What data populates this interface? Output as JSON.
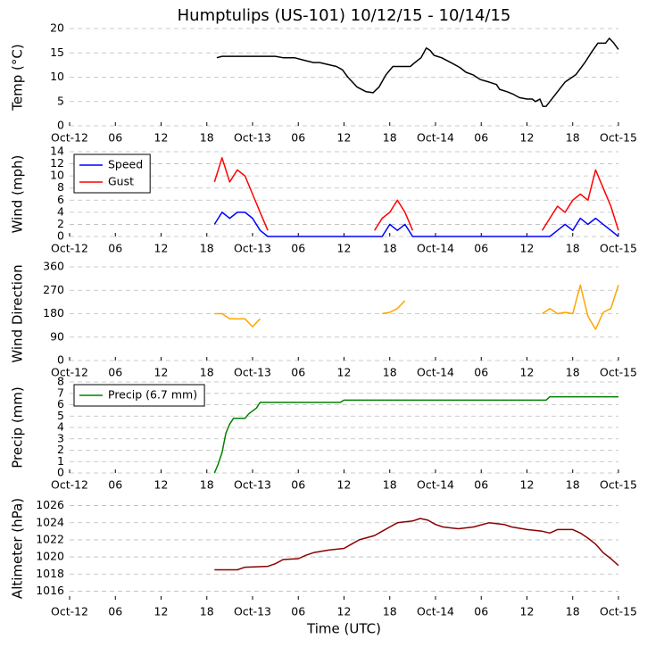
{
  "chart_data": [
    {
      "type": "line",
      "title": "Humptulips (US-101) 10/12/15 - 10/14/15",
      "ylabel": "Temp (°C)",
      "x": [
        19.3,
        20,
        22,
        24,
        26,
        27,
        28,
        29.5,
        30.7,
        32,
        32.8,
        35,
        35.8,
        36.5,
        37.7,
        38.9,
        39.8,
        40.6,
        41.5,
        42.4,
        44.7,
        45.3,
        46.1,
        46.8,
        47.3,
        47.8,
        48.8,
        50,
        51.2,
        52,
        52.9,
        53.9,
        55,
        56,
        56.4,
        57.4,
        58.2,
        59,
        60,
        60.7,
        61.1,
        61.7,
        62.1,
        62.5,
        63.5,
        65,
        66.4,
        67.6,
        68.4,
        69.3,
        70.3,
        70.8,
        71.4,
        72
      ],
      "series": [
        {
          "color": "#000000",
          "values": [
            14,
            14.3,
            14.3,
            14.3,
            14.3,
            14.3,
            14,
            14,
            13.5,
            13,
            13,
            12.2,
            11.5,
            10,
            8,
            7,
            6.8,
            8,
            10.5,
            12.2,
            12.2,
            13,
            14,
            16,
            15.5,
            14.5,
            14,
            13,
            12,
            11,
            10.5,
            9.5,
            9,
            8.5,
            7.5,
            7,
            6.5,
            5.8,
            5.5,
            5.5,
            5,
            5.5,
            4,
            4,
            6,
            9,
            10.5,
            13,
            15,
            17,
            17,
            18,
            17,
            15.7
          ]
        }
      ],
      "ylim": [
        0,
        20
      ],
      "yticks": [
        0,
        5,
        10,
        15,
        20
      ],
      "xlim": [
        0,
        72
      ],
      "xticks": [
        {
          "value": 0,
          "label": "Oct-12"
        },
        {
          "value": 6,
          "label": "06"
        },
        12,
        18,
        {
          "value": 24,
          "label": "Oct-13"
        },
        {
          "value": 30,
          "label": "06"
        },
        {
          "value": 36,
          "label": "12"
        },
        {
          "value": 42,
          "label": "18"
        },
        {
          "value": 48,
          "label": "Oct-14"
        },
        {
          "value": 54,
          "label": "06"
        },
        {
          "value": 60,
          "label": "12"
        },
        {
          "value": 66,
          "label": "18"
        },
        {
          "value": 72,
          "label": "Oct-15"
        }
      ],
      "grid": true
    },
    {
      "type": "line",
      "ylabel": "Wind (mph)",
      "x": [
        19,
        20,
        21,
        22,
        23,
        24,
        25,
        26,
        27,
        28,
        29,
        30,
        31,
        32,
        33,
        34,
        35,
        36,
        37,
        38,
        39,
        40,
        41,
        42,
        43,
        44,
        45,
        46,
        47,
        48,
        49,
        50,
        51,
        52,
        53,
        54,
        55,
        56,
        57,
        58,
        59,
        60,
        61,
        62,
        63,
        64,
        65,
        66,
        67,
        68,
        69,
        70,
        71,
        72
      ],
      "series": [
        {
          "name": "Speed",
          "color": "#0000ff",
          "values": [
            2,
            4,
            3,
            4,
            4,
            3,
            1,
            0,
            0,
            0,
            0,
            0,
            0,
            0,
            0,
            0,
            0,
            0,
            0,
            0,
            0,
            0,
            0,
            2,
            1,
            2,
            0,
            0,
            0,
            0,
            0,
            0,
            0,
            0,
            0,
            0,
            0,
            0,
            0,
            0,
            0,
            0,
            0,
            0,
            0,
            1,
            2,
            1,
            3,
            2,
            3,
            2,
            1,
            0
          ]
        },
        {
          "name": "Gust",
          "color": "#ff0000",
          "values": [
            9,
            13,
            9,
            11,
            10,
            7,
            4,
            1,
            null,
            null,
            null,
            null,
            null,
            null,
            null,
            null,
            null,
            null,
            null,
            null,
            null,
            1,
            3,
            4,
            6,
            4,
            1,
            null,
            null,
            null,
            null,
            null,
            null,
            null,
            null,
            null,
            null,
            null,
            null,
            null,
            null,
            null,
            null,
            1,
            3,
            5,
            4,
            6,
            7,
            6,
            11,
            8,
            5,
            1
          ]
        }
      ],
      "legend": "upper left",
      "ylim": [
        0,
        14
      ],
      "yticks": [
        0,
        2,
        4,
        6,
        8,
        10,
        12,
        14
      ],
      "xlim": [
        0,
        72
      ],
      "xticks": [
        {
          "value": 0,
          "label": "Oct-12"
        },
        {
          "value": 6,
          "label": "06"
        },
        12,
        18,
        {
          "value": 24,
          "label": "Oct-13"
        },
        {
          "value": 30,
          "label": "06"
        },
        {
          "value": 36,
          "label": "12"
        },
        {
          "value": 42,
          "label": "18"
        },
        {
          "value": 48,
          "label": "Oct-14"
        },
        {
          "value": 54,
          "label": "06"
        },
        {
          "value": 60,
          "label": "12"
        },
        {
          "value": 66,
          "label": "18"
        },
        {
          "value": 72,
          "label": "Oct-15"
        }
      ],
      "grid": true
    },
    {
      "type": "line",
      "ylabel": "Wind Direction",
      "x": [
        19,
        20,
        21,
        22,
        23,
        24,
        25,
        26,
        41,
        42,
        43,
        44,
        45,
        62,
        63,
        64,
        65,
        66,
        67,
        68,
        69,
        70,
        71,
        72
      ],
      "series": [
        {
          "color": "#ffa500",
          "values": [
            180,
            180,
            160,
            160,
            160,
            130,
            160,
            null,
            180,
            185,
            200,
            230,
            null,
            180,
            200,
            180,
            185,
            180,
            290,
            170,
            120,
            185,
            200,
            290
          ]
        }
      ],
      "ylim": [
        0,
        360
      ],
      "yticks": [
        0,
        90,
        180,
        270,
        360
      ],
      "xlim": [
        0,
        72
      ],
      "xticks": [
        {
          "value": 0,
          "label": "Oct-12"
        },
        {
          "value": 6,
          "label": "06"
        },
        12,
        18,
        {
          "value": 24,
          "label": "Oct-13"
        },
        {
          "value": 30,
          "label": "06"
        },
        {
          "value": 36,
          "label": "12"
        },
        {
          "value": 42,
          "label": "18"
        },
        {
          "value": 48,
          "label": "Oct-14"
        },
        {
          "value": 54,
          "label": "06"
        },
        {
          "value": 60,
          "label": "12"
        },
        {
          "value": 66,
          "label": "18"
        },
        {
          "value": 72,
          "label": "Oct-15"
        }
      ],
      "grid": true
    },
    {
      "type": "line",
      "ylabel": "Precip (mm)",
      "x": [
        19,
        19.5,
        20,
        20.5,
        21,
        21.5,
        23,
        23.5,
        24.5,
        25,
        35.5,
        36,
        62.5,
        63,
        72
      ],
      "series": [
        {
          "name": "Precip (6.7 mm)",
          "color": "#008000",
          "values": [
            0,
            0.8,
            1.8,
            3.5,
            4.3,
            4.8,
            4.8,
            5.2,
            5.7,
            6.2,
            6.2,
            6.4,
            6.4,
            6.7,
            6.7
          ]
        }
      ],
      "legend": "upper left",
      "ylim": [
        0,
        8
      ],
      "yticks": [
        0,
        1,
        2,
        3,
        4,
        5,
        6,
        7,
        8
      ],
      "xlim": [
        0,
        72
      ],
      "xticks": [
        {
          "value": 0,
          "label": "Oct-12"
        },
        {
          "value": 6,
          "label": "06"
        },
        12,
        18,
        {
          "value": 24,
          "label": "Oct-13"
        },
        {
          "value": 30,
          "label": "06"
        },
        {
          "value": 36,
          "label": "12"
        },
        {
          "value": 42,
          "label": "18"
        },
        {
          "value": 48,
          "label": "Oct-14"
        },
        {
          "value": 54,
          "label": "06"
        },
        {
          "value": 60,
          "label": "12"
        },
        {
          "value": 66,
          "label": "18"
        },
        {
          "value": 72,
          "label": "Oct-15"
        }
      ],
      "grid": true
    },
    {
      "type": "line",
      "ylabel": "Altimeter (hPa)",
      "xlabel": "Time (UTC)",
      "x": [
        19,
        22,
        23,
        26,
        27,
        28,
        30,
        31,
        32,
        34,
        36,
        37,
        38,
        40,
        41,
        42,
        43,
        45,
        46,
        47,
        48,
        49,
        51,
        53,
        55,
        57,
        58,
        60,
        62,
        63,
        64,
        66,
        67,
        68,
        69,
        70,
        71,
        72
      ],
      "series": [
        {
          "color": "#8b0000",
          "values": [
            1018.5,
            1018.5,
            1018.8,
            1018.9,
            1019.2,
            1019.7,
            1019.8,
            1020.2,
            1020.5,
            1020.8,
            1021,
            1021.5,
            1022,
            1022.5,
            1023,
            1023.5,
            1024,
            1024.2,
            1024.5,
            1024.3,
            1023.8,
            1023.5,
            1023.3,
            1023.5,
            1024,
            1023.8,
            1023.5,
            1023.2,
            1023,
            1022.8,
            1023.2,
            1023.2,
            1022.8,
            1022.2,
            1021.5,
            1020.5,
            1019.8,
            1019
          ]
        }
      ],
      "ylim": [
        1015,
        1027
      ],
      "yticks": [
        1016,
        1018,
        1020,
        1022,
        1024,
        1026
      ],
      "xlim": [
        0,
        72
      ],
      "xticks": [
        {
          "value": 0,
          "label": "Oct-12"
        },
        {
          "value": 6,
          "label": "06"
        },
        12,
        18,
        {
          "value": 24,
          "label": "Oct-13"
        },
        {
          "value": 30,
          "label": "06"
        },
        {
          "value": 36,
          "label": "12"
        },
        {
          "value": 42,
          "label": "18"
        },
        {
          "value": 48,
          "label": "Oct-14"
        },
        {
          "value": 54,
          "label": "06"
        },
        {
          "value": 60,
          "label": "12"
        },
        {
          "value": 66,
          "label": "18"
        },
        {
          "value": 72,
          "label": "Oct-15"
        }
      ],
      "grid": true
    }
  ]
}
